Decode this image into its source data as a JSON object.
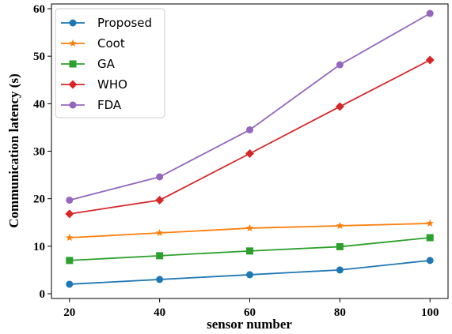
{
  "chart_data": {
    "type": "line",
    "xlabel": "sensor number",
    "ylabel": "Communication latency  (s)",
    "x": [
      20,
      40,
      60,
      80,
      100
    ],
    "xlim": [
      16,
      104
    ],
    "ylim": [
      -1,
      61
    ],
    "xticks": [
      "20",
      "40",
      "60",
      "80",
      "100"
    ],
    "yticks": [
      "0",
      "10",
      "20",
      "30",
      "40",
      "50",
      "60"
    ],
    "grid": false,
    "legend_position": "top-left",
    "series": [
      {
        "name": "Proposed",
        "marker": "circle",
        "color": "#1f77b4",
        "values": [
          2,
          3,
          4,
          5,
          7
        ]
      },
      {
        "name": "Coot",
        "marker": "star",
        "color": "#ff7f0e",
        "values": [
          11.8,
          12.8,
          13.8,
          14.3,
          14.8
        ]
      },
      {
        "name": "GA",
        "marker": "square",
        "color": "#2ca02c",
        "values": [
          7,
          8,
          9,
          9.9,
          11.8
        ]
      },
      {
        "name": "WHO",
        "marker": "diamond",
        "color": "#d62728",
        "values": [
          16.8,
          19.7,
          29.5,
          39.4,
          49.2
        ]
      },
      {
        "name": "FDA",
        "marker": "circle",
        "color": "#9467bd",
        "values": [
          19.7,
          24.6,
          34.5,
          48.2,
          59
        ]
      }
    ]
  }
}
